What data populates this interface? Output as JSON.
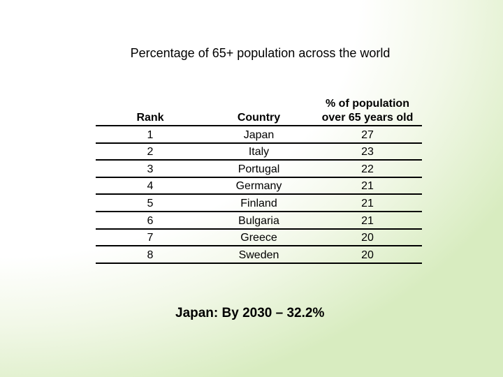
{
  "title": "Percentage of 65+ population across the world",
  "table": {
    "headers": [
      "Rank",
      "Country",
      "% of population over 65 years old"
    ],
    "rows": [
      [
        "1",
        "Japan",
        "27"
      ],
      [
        "2",
        "Italy",
        "23"
      ],
      [
        "3",
        "Portugal",
        "22"
      ],
      [
        "4",
        "Germany",
        "21"
      ],
      [
        "5",
        "Finland",
        "21"
      ],
      [
        "6",
        "Bulgaria",
        "21"
      ],
      [
        "7",
        "Greece",
        "20"
      ],
      [
        "8",
        "Sweden",
        "20"
      ]
    ]
  },
  "note": "Japan: By 2030 – 32.2%"
}
